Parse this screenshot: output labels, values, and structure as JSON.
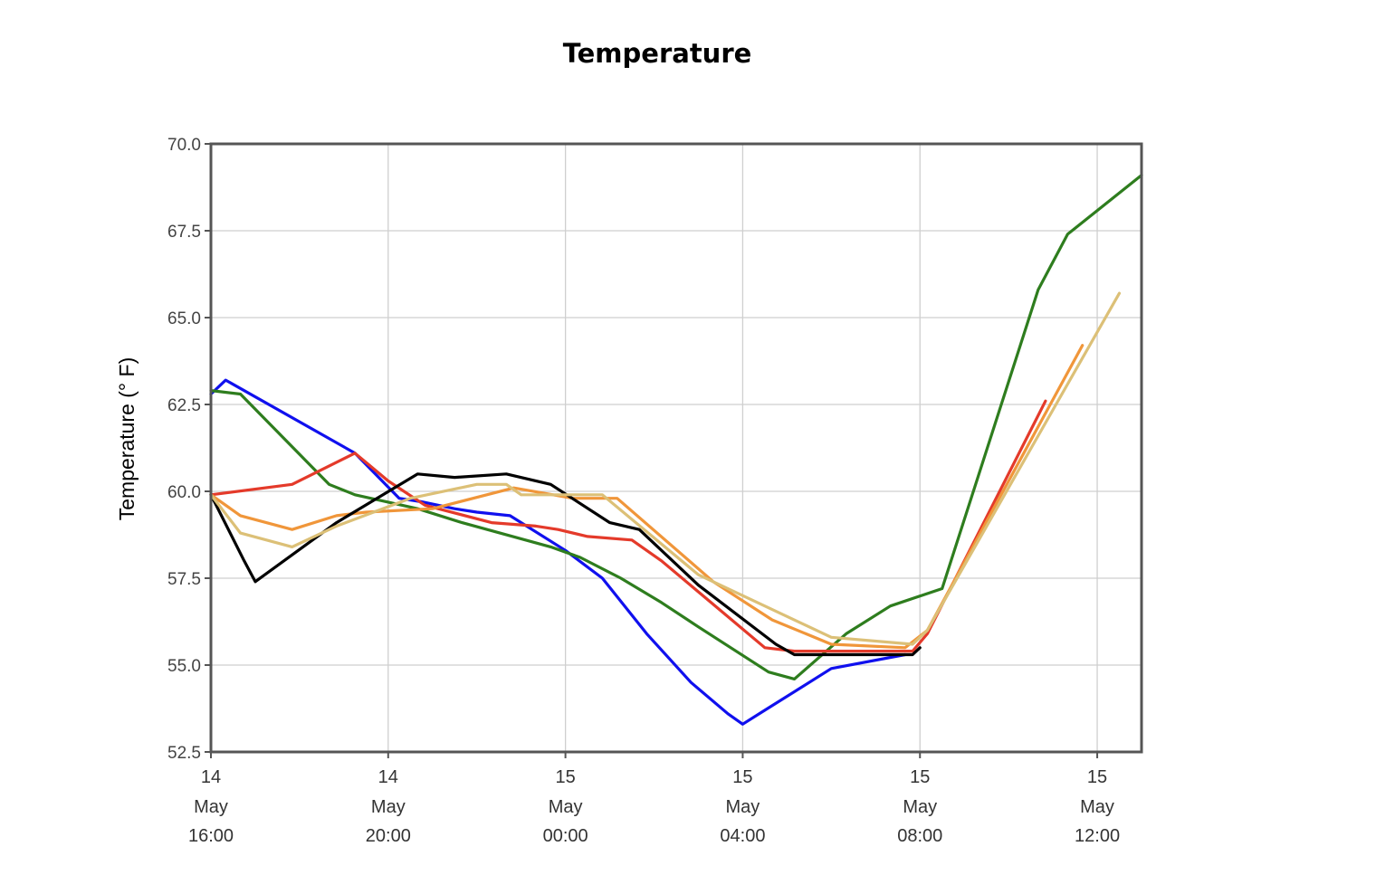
{
  "chart_data": {
    "type": "line",
    "title": "Temperature",
    "xlabel": "",
    "ylabel": "Temperature (° F)",
    "ylim": [
      52.5,
      70.0
    ],
    "xlim": [
      "2024-05-14 16:00",
      "2024-05-15 13:00"
    ],
    "y_ticks": [
      "52.5",
      "55.0",
      "57.5",
      "60.0",
      "62.5",
      "65.0",
      "67.5",
      "70.0"
    ],
    "x_ticks": [
      {
        "day": "14",
        "month": "May",
        "time": "16:00"
      },
      {
        "day": "14",
        "month": "May",
        "time": "20:00"
      },
      {
        "day": "15",
        "month": "May",
        "time": "00:00"
      },
      {
        "day": "15",
        "month": "May",
        "time": "04:00"
      },
      {
        "day": "15",
        "month": "May",
        "time": "08:00"
      },
      {
        "day": "15",
        "month": "May",
        "time": "12:00"
      }
    ],
    "grid": true,
    "legend": "none",
    "series": [
      {
        "color": "#1010ee",
        "points": [
          [
            "14 May 16:00",
            62.8
          ],
          [
            "14 May 16:20",
            63.2
          ],
          [
            "14 May 19:15",
            61.1
          ],
          [
            "14 May 20:15",
            59.8
          ],
          [
            "14 May 20:45",
            59.7
          ],
          [
            "14 May 21:30",
            59.5
          ],
          [
            "14 May 22:00",
            59.4
          ],
          [
            "14 May 22:45",
            59.3
          ],
          [
            "15 May 00:00",
            58.3
          ],
          [
            "15 May 00:50",
            57.5
          ],
          [
            "15 May 01:50",
            55.9
          ],
          [
            "15 May 02:50",
            54.5
          ],
          [
            "15 May 03:40",
            53.6
          ],
          [
            "15 May 04:00",
            53.3
          ],
          [
            "15 May 04:30",
            53.7
          ],
          [
            "15 May 05:15",
            54.3
          ],
          [
            "15 May 06:00",
            54.9
          ],
          [
            "15 May 07:40",
            55.3
          ]
        ]
      },
      {
        "color": "#2e7d1e",
        "points": [
          [
            "14 May 16:00",
            62.9
          ],
          [
            "14 May 16:40",
            62.8
          ],
          [
            "14 May 18:40",
            60.2
          ],
          [
            "14 May 19:15",
            59.9
          ],
          [
            "14 May 20:40",
            59.5
          ],
          [
            "14 May 21:40",
            59.1
          ],
          [
            "14 May 23:40",
            58.4
          ],
          [
            "15 May 00:20",
            58.1
          ],
          [
            "15 May 01:15",
            57.5
          ],
          [
            "15 May 02:10",
            56.8
          ],
          [
            "15 May 03:00",
            56.1
          ],
          [
            "15 May 04:35",
            54.8
          ],
          [
            "15 May 05:10",
            54.6
          ],
          [
            "15 May 06:20",
            55.9
          ],
          [
            "15 May 07:20",
            56.7
          ],
          [
            "15 May 08:30",
            57.2
          ],
          [
            "15 May 10:40",
            65.8
          ],
          [
            "15 May 11:20",
            67.4
          ],
          [
            "15 May 13:00",
            69.1
          ]
        ]
      },
      {
        "color": "#e43a2a",
        "points": [
          [
            "14 May 16:00",
            59.9
          ],
          [
            "14 May 17:50",
            60.2
          ],
          [
            "14 May 19:15",
            61.1
          ],
          [
            "14 May 20:00",
            60.3
          ],
          [
            "14 May 20:50",
            59.6
          ],
          [
            "14 May 22:20",
            59.1
          ],
          [
            "14 May 23:20",
            59.0
          ],
          [
            "14 May 23:50",
            58.9
          ],
          [
            "15 May 00:30",
            58.7
          ],
          [
            "15 May 01:30",
            58.6
          ],
          [
            "15 May 02:10",
            58.0
          ],
          [
            "15 May 04:30",
            55.5
          ],
          [
            "15 May 05:10",
            55.4
          ],
          [
            "15 May 06:40",
            55.4
          ],
          [
            "15 May 07:50",
            55.4
          ],
          [
            "15 May 08:10",
            55.9
          ],
          [
            "15 May 10:50",
            62.6
          ]
        ]
      },
      {
        "color": "#f0963a",
        "points": [
          [
            "14 May 16:00",
            59.9
          ],
          [
            "14 May 16:40",
            59.3
          ],
          [
            "14 May 17:50",
            58.9
          ],
          [
            "14 May 18:50",
            59.3
          ],
          [
            "14 May 19:30",
            59.4
          ],
          [
            "14 May 21:00",
            59.5
          ],
          [
            "14 May 22:50",
            60.1
          ],
          [
            "15 May 00:10",
            59.8
          ],
          [
            "15 May 01:10",
            59.8
          ],
          [
            "15 May 03:20",
            57.4
          ],
          [
            "15 May 04:40",
            56.3
          ],
          [
            "15 May 06:00",
            55.6
          ],
          [
            "15 May 07:40",
            55.5
          ],
          [
            "15 May 08:10",
            56.0
          ],
          [
            "15 May 11:40",
            64.2
          ]
        ]
      },
      {
        "color": "#000000",
        "points": [
          [
            "14 May 16:00",
            59.9
          ],
          [
            "14 May 16:45",
            58.0
          ],
          [
            "14 May 17:00",
            57.4
          ],
          [
            "14 May 18:50",
            59.1
          ],
          [
            "14 May 20:40",
            60.5
          ],
          [
            "14 May 21:30",
            60.4
          ],
          [
            "14 May 22:40",
            60.5
          ],
          [
            "14 May 23:40",
            60.2
          ],
          [
            "15 May 01:00",
            59.1
          ],
          [
            "15 May 01:40",
            58.9
          ],
          [
            "15 May 03:00",
            57.3
          ],
          [
            "15 May 04:45",
            55.6
          ],
          [
            "15 May 05:10",
            55.3
          ],
          [
            "15 May 06:20",
            55.3
          ],
          [
            "15 May 07:50",
            55.3
          ],
          [
            "15 May 08:00",
            55.5
          ]
        ]
      },
      {
        "color": "#dcc077",
        "points": [
          [
            "14 May 16:00",
            59.9
          ],
          [
            "14 May 16:40",
            58.8
          ],
          [
            "14 May 17:50",
            58.4
          ],
          [
            "14 May 18:50",
            59.0
          ],
          [
            "14 May 20:30",
            59.8
          ],
          [
            "14 May 22:00",
            60.2
          ],
          [
            "14 May 22:40",
            60.2
          ],
          [
            "14 May 23:00",
            59.9
          ],
          [
            "15 May 00:50",
            59.9
          ],
          [
            "15 May 03:00",
            57.6
          ],
          [
            "15 May 06:00",
            55.8
          ],
          [
            "15 May 07:50",
            55.6
          ],
          [
            "15 May 08:10",
            56.0
          ],
          [
            "15 May 12:30",
            65.7
          ]
        ]
      }
    ]
  }
}
